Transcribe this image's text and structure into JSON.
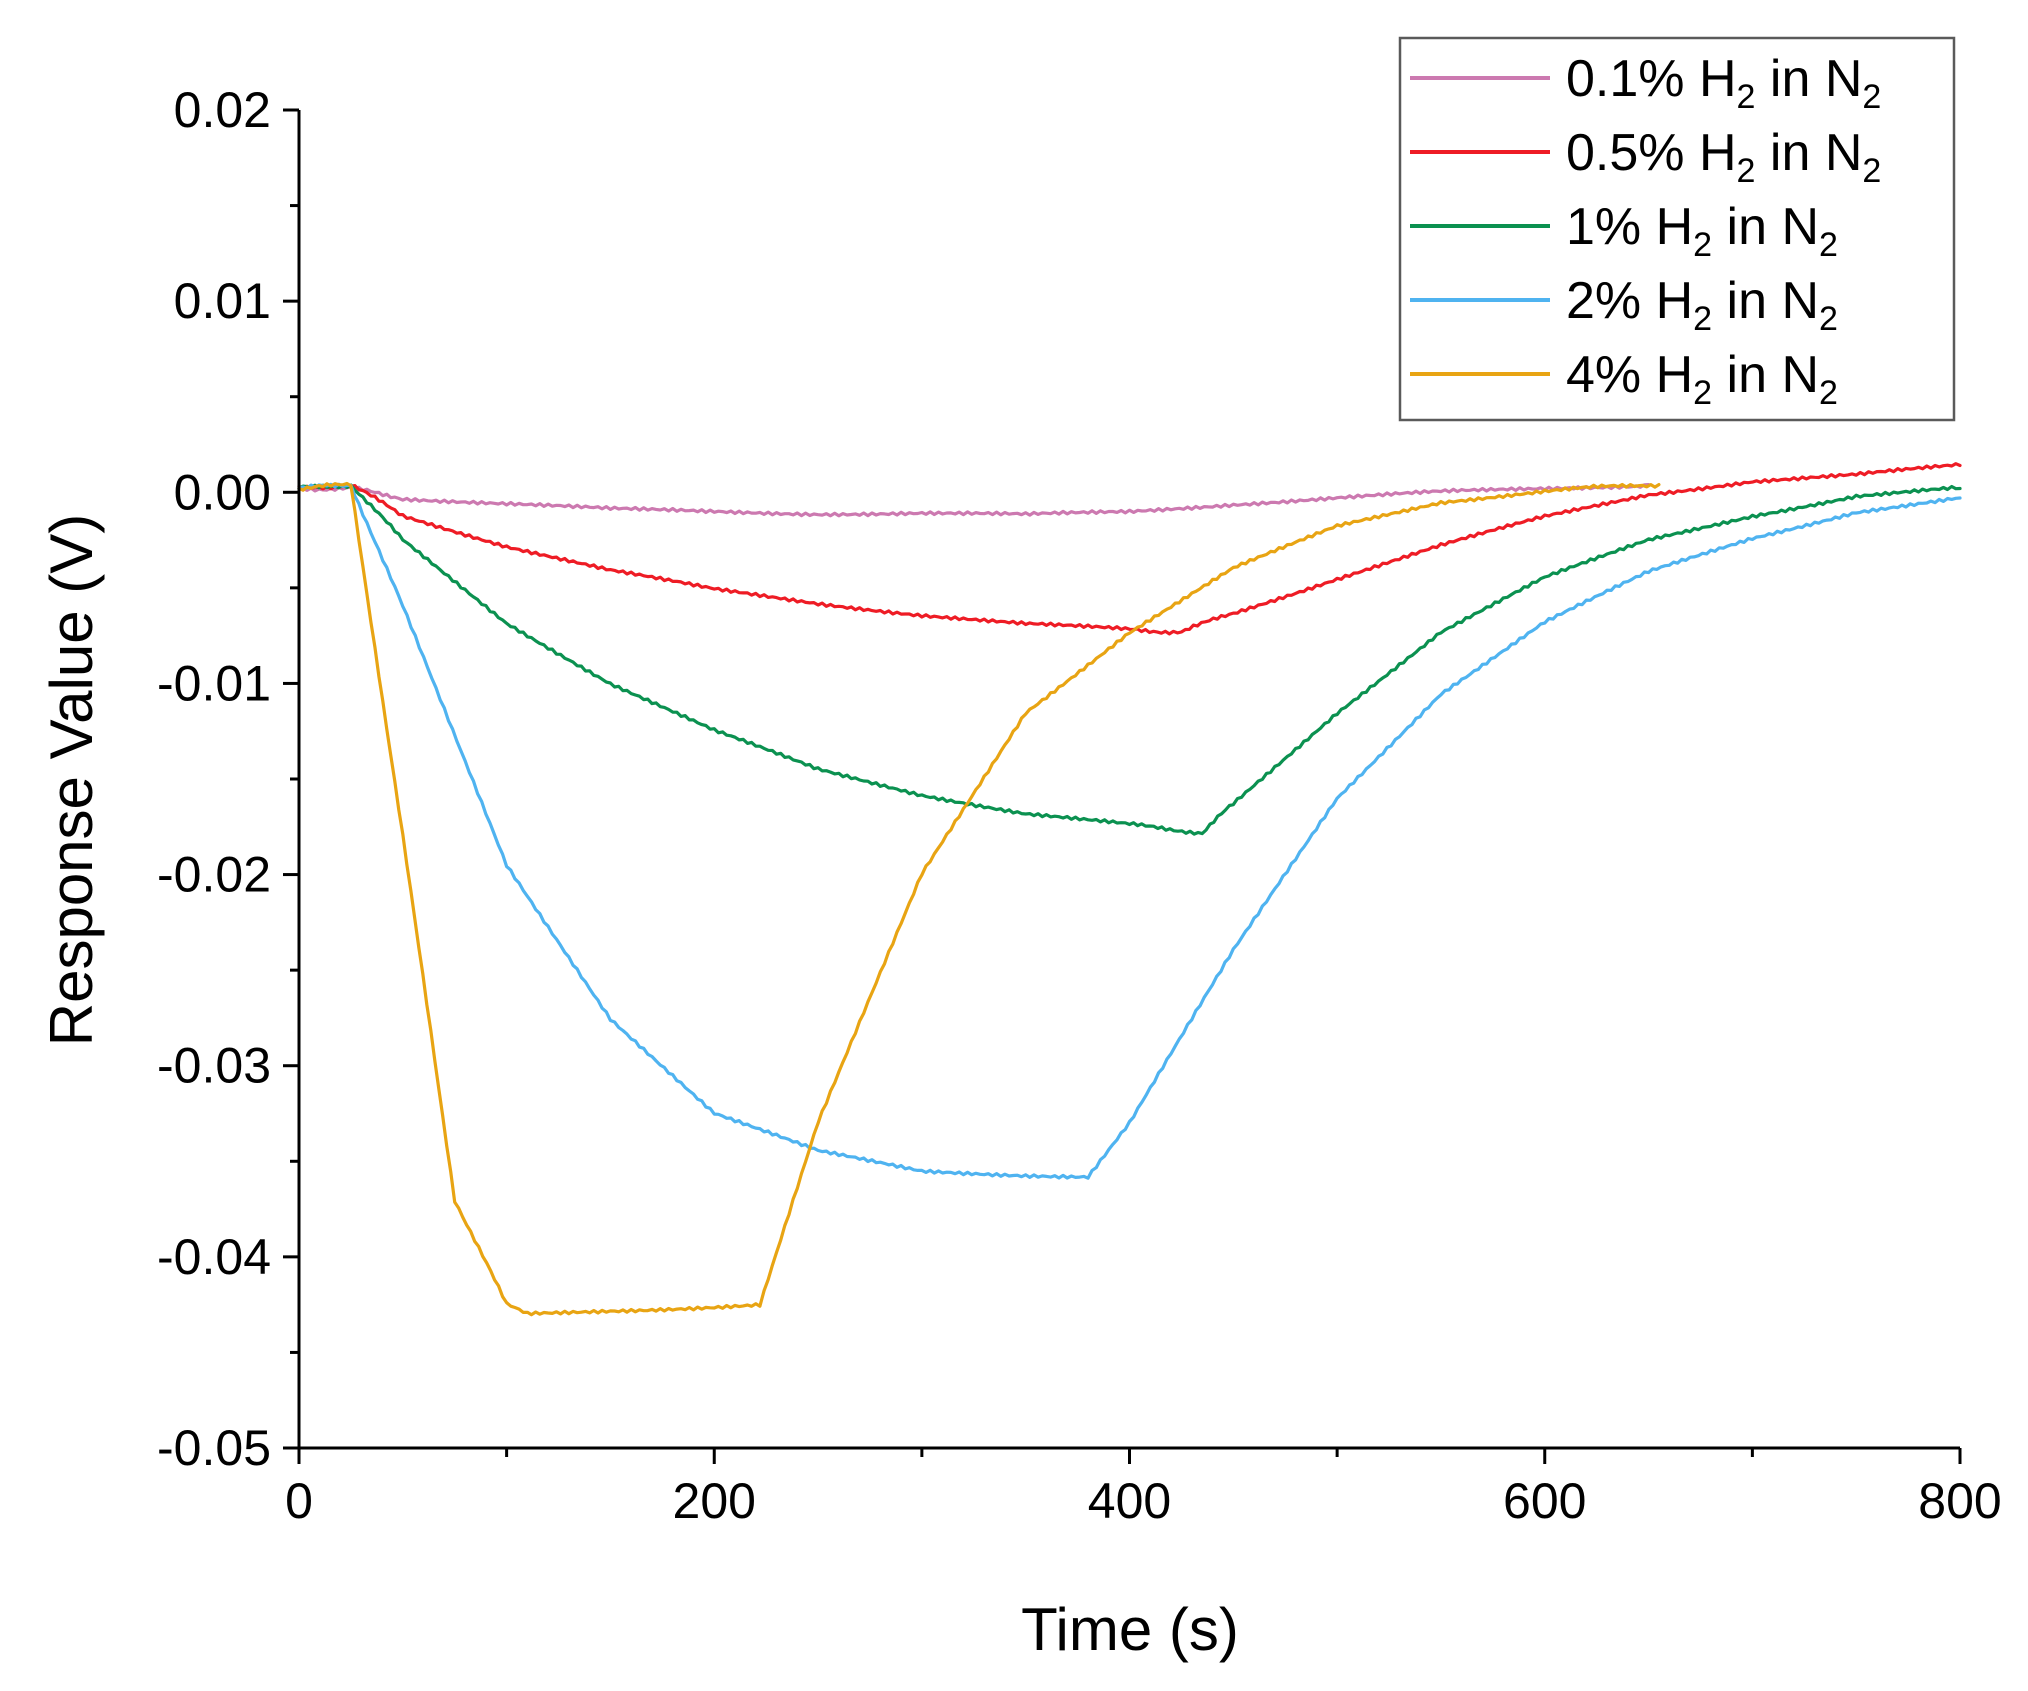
{
  "chart_data": {
    "type": "line",
    "title": "",
    "xlabel": "Time (s)",
    "ylabel": "Response Value (V)",
    "xlim": [
      0,
      800
    ],
    "ylim": [
      -0.05,
      0.02
    ],
    "xticks": [
      {
        "value": 0,
        "label": "0"
      },
      {
        "value": 200,
        "label": "200"
      },
      {
        "value": 400,
        "label": "400"
      },
      {
        "value": 600,
        "label": "600"
      },
      {
        "value": 800,
        "label": "800"
      }
    ],
    "yticks": [
      {
        "value": 0.02,
        "label": "0.02"
      },
      {
        "value": 0.01,
        "label": "0.01"
      },
      {
        "value": 0.0,
        "label": "0.00"
      },
      {
        "value": -0.01,
        "label": "-0.01"
      },
      {
        "value": -0.02,
        "label": "-0.02"
      },
      {
        "value": -0.03,
        "label": "-0.03"
      },
      {
        "value": -0.04,
        "label": "-0.04"
      },
      {
        "value": -0.05,
        "label": "-0.05"
      }
    ],
    "grid": false,
    "legend_position": "top-right",
    "series": [
      {
        "name": "0.1% H2 in N2",
        "label_parts": [
          "0.1% H",
          "2",
          " in N",
          "2"
        ],
        "color": "#cc79b0",
        "x": [
          0,
          25,
          50,
          100,
          150,
          200,
          250,
          300,
          350,
          400,
          450,
          500,
          550,
          600,
          650
        ],
        "y": [
          0.0002,
          0.0002,
          -0.0003,
          -0.0006,
          -0.0009,
          -0.001,
          -0.0011,
          -0.0011,
          -0.0012,
          -0.001,
          -0.0006,
          -0.0003,
          0.0,
          0.0002,
          0.0004
        ]
      },
      {
        "name": "0.5% H2 in N2",
        "label_parts": [
          "0.5% H",
          "2",
          " in N",
          "2"
        ],
        "color": "#ee1c25",
        "x": [
          0,
          25,
          50,
          100,
          150,
          200,
          250,
          300,
          350,
          400,
          425,
          450,
          500,
          550,
          600,
          650,
          700,
          750,
          800
        ],
        "y": [
          0.0002,
          0.0004,
          -0.0012,
          -0.0028,
          -0.0041,
          -0.0051,
          -0.0058,
          -0.0064,
          -0.0069,
          -0.0072,
          -0.0073,
          -0.0063,
          -0.0045,
          -0.0028,
          -0.0013,
          -0.0001,
          0.0006,
          0.0009,
          0.0014
        ]
      },
      {
        "name": "1% H2 in N2",
        "label_parts": [
          "1% H",
          "2",
          " in N",
          "2"
        ],
        "color": "#0b9150",
        "x": [
          0,
          25,
          50,
          100,
          150,
          200,
          250,
          300,
          350,
          400,
          435,
          450,
          500,
          550,
          600,
          650,
          700,
          750,
          800
        ],
        "y": [
          0.0002,
          0.0004,
          -0.0025,
          -0.0068,
          -0.01,
          -0.0125,
          -0.0145,
          -0.0158,
          -0.0168,
          -0.0174,
          -0.0178,
          -0.0163,
          -0.0115,
          -0.0073,
          -0.0045,
          -0.0025,
          -0.0012,
          -0.0002,
          0.0002
        ]
      },
      {
        "name": "2% H2 in N2",
        "label_parts": [
          "2% H",
          "2",
          " in N",
          "2"
        ],
        "color": "#4fb3f0",
        "x": [
          0,
          25,
          50,
          100,
          150,
          200,
          250,
          300,
          350,
          380,
          400,
          450,
          500,
          550,
          600,
          650,
          700,
          750,
          800
        ],
        "y": [
          0.0002,
          0.0004,
          -0.006,
          -0.0195,
          -0.0275,
          -0.0325,
          -0.0345,
          -0.0355,
          -0.0357,
          -0.0358,
          -0.033,
          -0.024,
          -0.016,
          -0.0105,
          -0.0068,
          -0.0042,
          -0.0024,
          -0.001,
          -0.0003
        ]
      },
      {
        "name": "4% H2 in N2",
        "label_parts": [
          "4% H",
          "2",
          " in N",
          "2"
        ],
        "color": "#e8a413",
        "x": [
          0,
          25,
          50,
          75,
          100,
          110,
          150,
          200,
          222,
          250,
          300,
          350,
          400,
          450,
          500,
          550,
          600,
          655
        ],
        "y": [
          0.0002,
          0.0004,
          -0.018,
          -0.037,
          -0.0425,
          -0.043,
          -0.0428,
          -0.0426,
          -0.0425,
          -0.033,
          -0.02,
          -0.0115,
          -0.0073,
          -0.004,
          -0.0018,
          -0.0005,
          0.0001,
          0.0004
        ]
      }
    ]
  }
}
